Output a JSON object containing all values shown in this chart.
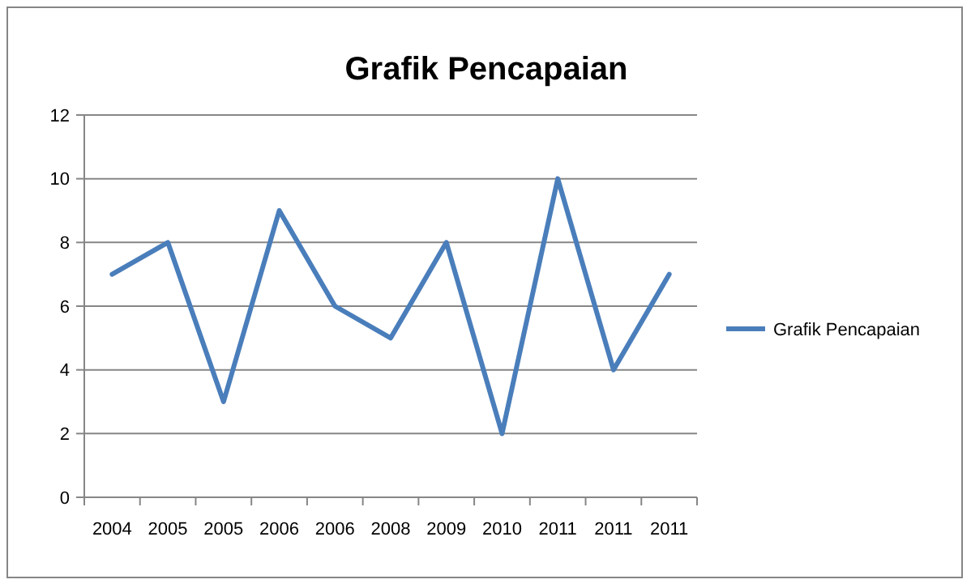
{
  "chart_data": {
    "type": "line",
    "title": "Grafik Pencapaian",
    "categories": [
      "2004",
      "2005",
      "2005",
      "2006",
      "2006",
      "2008",
      "2009",
      "2010",
      "2011",
      "2011",
      "2011"
    ],
    "series": [
      {
        "name": "Grafik Pencapaian",
        "color": "#4a7ebb",
        "values": [
          7,
          8,
          3,
          9,
          6,
          5,
          8,
          2,
          10,
          4,
          7
        ]
      }
    ],
    "ylim": [
      0,
      12
    ],
    "yticks": [
      0,
      2,
      4,
      6,
      8,
      10,
      12
    ],
    "grid": "y",
    "legend": "right",
    "marker": "none",
    "line_style": "solid"
  }
}
